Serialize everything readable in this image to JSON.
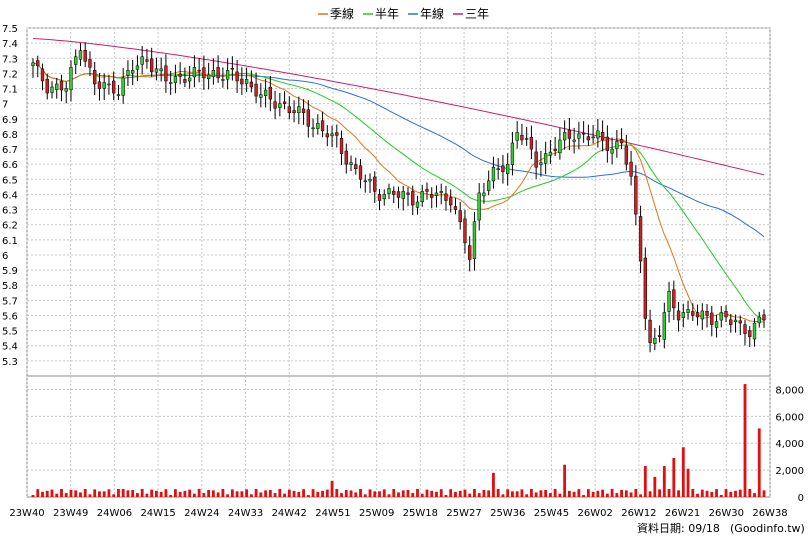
{
  "chart_data": {
    "type": "candlestick",
    "legend": [
      {
        "name": "季線",
        "color": "#e6731a"
      },
      {
        "name": "半年",
        "color": "#22cc22"
      },
      {
        "name": "年線",
        "color": "#2a6fd6"
      },
      {
        "name": "三年",
        "color": "#cc1f6e"
      }
    ],
    "price_axis": {
      "ylim": [
        5.2,
        7.5
      ],
      "ticks": [
        "7.5",
        "7.4",
        "7.3",
        "7.2",
        "7.1",
        "7",
        "6.9",
        "6.8",
        "6.7",
        "6.6",
        "6.5",
        "6.4",
        "6.3",
        "6.2",
        "6.1",
        "6",
        "5.9",
        "5.8",
        "5.7",
        "5.6",
        "5.5",
        "5.4",
        "5.3"
      ]
    },
    "volume_axis": {
      "ylim": [
        0,
        9000
      ],
      "ticks": [
        "8,000",
        "6,000",
        "4,000",
        "2,000",
        "0"
      ]
    },
    "x_labels": [
      "23W40",
      "23W49",
      "24W06",
      "24W15",
      "24W24",
      "24W33",
      "24W42",
      "24W51",
      "25W09",
      "25W18",
      "25W27",
      "25W36",
      "25W45",
      "26W02",
      "26W12",
      "26W21",
      "26W30",
      "26W38"
    ],
    "up_color": "#33cc33",
    "down_color": "#cc2222",
    "volume_color": "#dd1111",
    "footer": {
      "date_label": "資料日期: 09/18",
      "source": "(Goodinfo.tw)"
    }
  }
}
